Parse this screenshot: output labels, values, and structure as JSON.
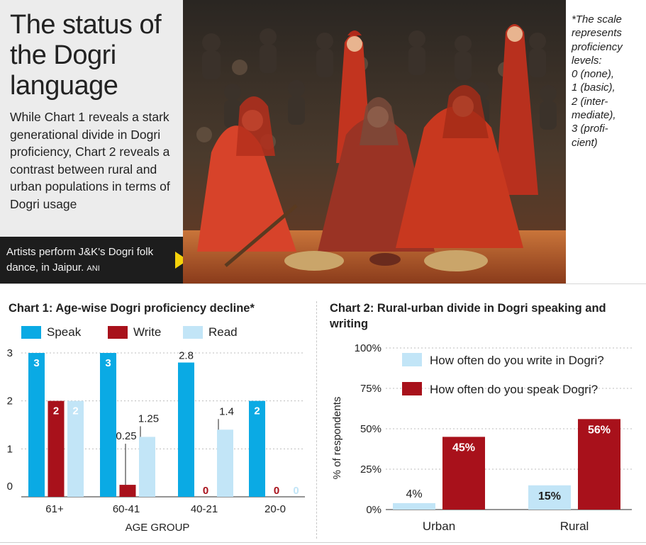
{
  "header": {
    "title": "The status of the Dogri language",
    "lede": "While Chart 1 reveals a stark generational divide in Dogri proficiency, Chart 2 reveals a contrast between rural and urban populations in terms of Dogri usage"
  },
  "photo": {
    "caption": "Artists perform J&K's Dogri folk dance, in Jaipur.",
    "credit": "ANI",
    "icon": "photo-dancers"
  },
  "scale_note": {
    "lines": [
      "*The scale",
      "represents",
      "proficiency",
      "levels:",
      "0 (none),",
      "1 (basic),",
      "2 (inter-",
      "mediate),",
      "3 (profi-",
      "cient)"
    ]
  },
  "colors": {
    "speak": "#0aaae4",
    "write": "#a8111b",
    "read": "#c2e5f7",
    "grid": "#bdbdbd",
    "axis": "#555555"
  },
  "chart_data": [
    {
      "type": "bar",
      "title": "Chart 1: Age-wise Dogri proficiency decline*",
      "xlabel": "AGE GROUP",
      "ylabel": "",
      "categories": [
        "61+",
        "60-41",
        "40-21",
        "20-0"
      ],
      "series": [
        {
          "name": "Speak",
          "values": [
            3,
            3,
            2.8,
            2
          ],
          "labels": [
            "3",
            "3",
            "2.8",
            "2"
          ]
        },
        {
          "name": "Write",
          "values": [
            2,
            0.25,
            0,
            0
          ],
          "labels": [
            "2",
            "0.25",
            "0",
            "0"
          ]
        },
        {
          "name": "Read",
          "values": [
            2,
            1.25,
            1.4,
            0
          ],
          "labels": [
            "2",
            "1.25",
            "1.4",
            "0"
          ]
        }
      ],
      "ylim": [
        0,
        3
      ],
      "yticks": [
        "0",
        "1",
        "2",
        "3"
      ],
      "grid": true,
      "legend": "top-left"
    },
    {
      "type": "bar",
      "title": "Chart 2: Rural-urban divide in Dogri speaking and writing",
      "xlabel": "",
      "ylabel": "% of respondents",
      "categories": [
        "Urban",
        "Rural"
      ],
      "series": [
        {
          "name": "How often do you write in Dogri?",
          "values": [
            4,
            15
          ],
          "labels": [
            "4%",
            "15%"
          ]
        },
        {
          "name": "How often do you speak Dogri?",
          "values": [
            45,
            56
          ],
          "labels": [
            "45%",
            "56%"
          ]
        }
      ],
      "ylim": [
        0,
        100
      ],
      "yticks": [
        "0%",
        "25%",
        "50%",
        "75%",
        "100%"
      ],
      "grid": true,
      "legend": "top-right"
    }
  ]
}
